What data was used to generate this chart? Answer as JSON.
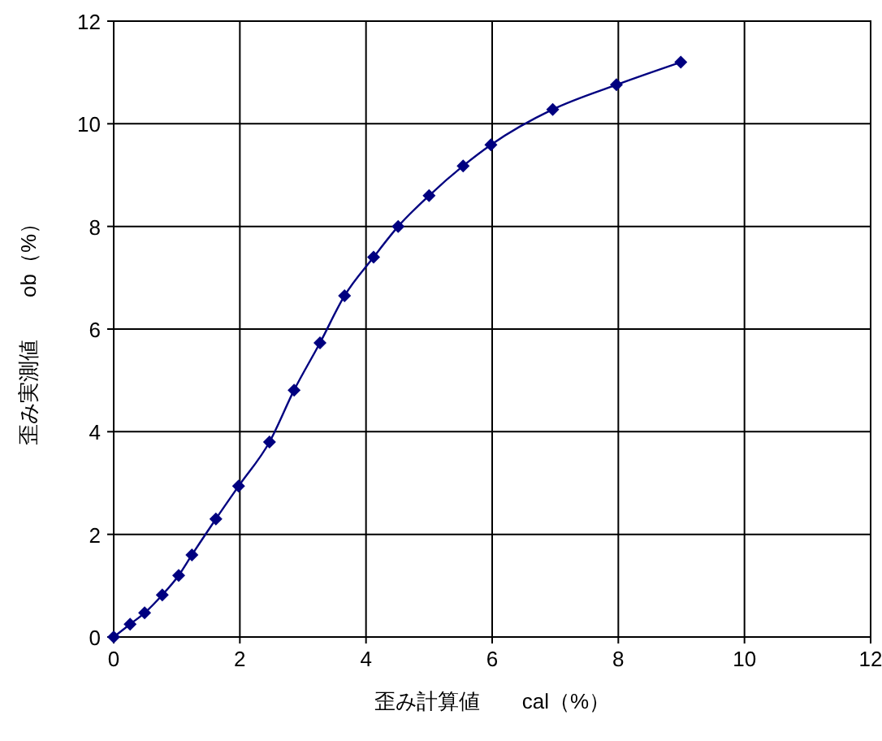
{
  "chart_data": {
    "type": "line",
    "xlabel": "歪み計算値　　cal（%）",
    "ylabel": "歪み実測値　　ob（%）",
    "x": [
      0,
      0.26,
      0.49,
      0.77,
      1.03,
      1.24,
      1.62,
      1.98,
      2.47,
      2.86,
      3.27,
      3.66,
      4.12,
      4.51,
      5.0,
      5.54,
      5.98,
      6.96,
      7.97,
      8.99
    ],
    "series": [
      {
        "color": "#000080",
        "values": [
          0,
          0.25,
          0.47,
          0.82,
          1.2,
          1.6,
          2.3,
          2.94,
          3.8,
          4.81,
          5.73,
          6.65,
          7.4,
          8.0,
          8.6,
          9.18,
          9.59,
          10.28,
          10.76,
          11.2
        ]
      }
    ],
    "xlim": [
      0,
      12
    ],
    "xticks": [
      0,
      2,
      4,
      6,
      8,
      10,
      12
    ],
    "ylim": [
      0,
      12
    ],
    "yticks": [
      0,
      2,
      4,
      6,
      8,
      10,
      12
    ],
    "grid": true,
    "marker": "diamond",
    "line_style": "solid"
  }
}
